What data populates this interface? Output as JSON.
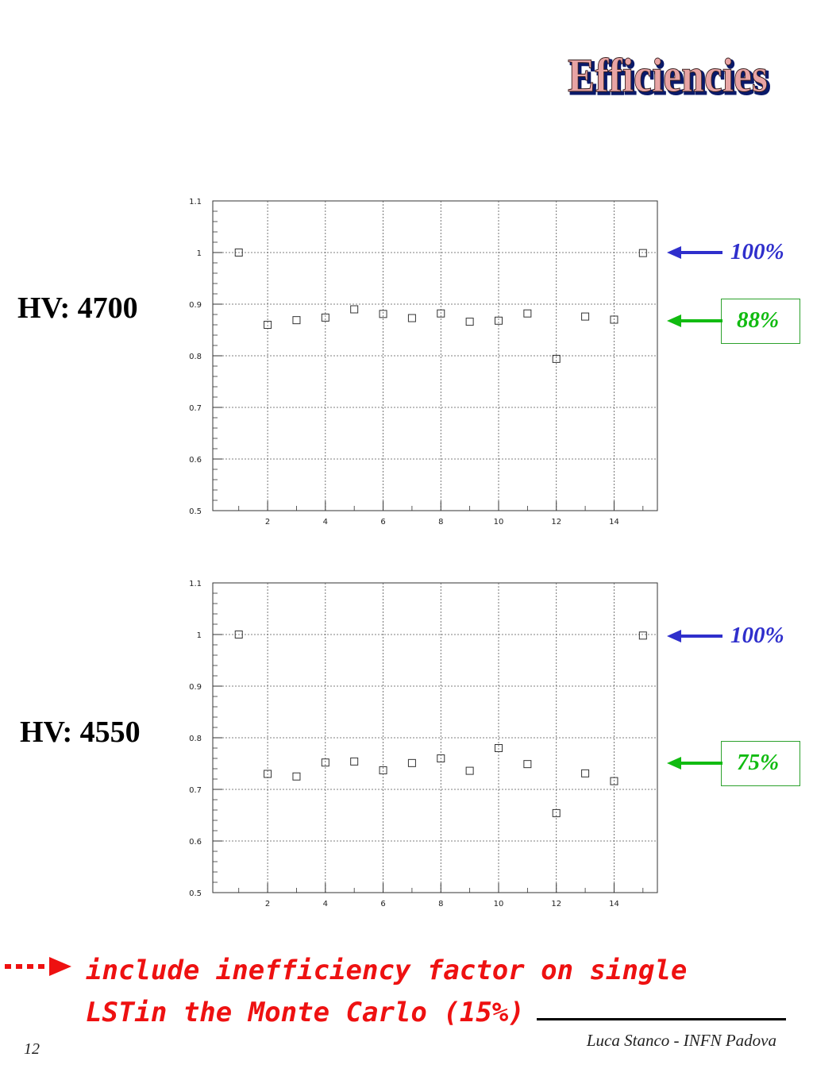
{
  "slide": {
    "title": "Efficiencies",
    "page_number": "12",
    "author": "Luca Stanco - INFN Padova",
    "note_line1": "include inefficiency factor on single",
    "note_line2": "LSTin the Monte Carlo (15%)",
    "colors": {
      "blue": "#2f2fcc",
      "green": "#11bb11",
      "red": "#ee1111"
    }
  },
  "panels": [
    {
      "hv_label": "HV: 4700",
      "pct_top": "100%",
      "pct_mid": "88%"
    },
    {
      "hv_label": "HV: 4550",
      "pct_top": "100%",
      "pct_mid": "75%"
    }
  ],
  "chart_data": [
    {
      "type": "scatter",
      "title": "",
      "xlabel": "",
      "ylabel": "",
      "xlim": [
        0.1,
        15.5
      ],
      "ylim": [
        0.5,
        1.1
      ],
      "grid": true,
      "xticks": [
        2,
        4,
        6,
        8,
        10,
        12,
        14
      ],
      "yticks": [
        0.5,
        0.6,
        0.7,
        0.8,
        0.9,
        1.0,
        1.1
      ],
      "ytick_labels": [
        "0.5",
        "0.6",
        "0.7",
        "0.8",
        "0.9",
        "1",
        "1.1"
      ],
      "x": [
        1,
        2,
        3,
        4,
        5,
        6,
        7,
        8,
        9,
        10,
        11,
        12,
        13,
        14,
        15
      ],
      "y": [
        1.0,
        0.86,
        0.869,
        0.874,
        0.89,
        0.881,
        0.873,
        0.882,
        0.866,
        0.868,
        0.882,
        0.794,
        0.876,
        0.87,
        0.999
      ]
    },
    {
      "type": "scatter",
      "title": "",
      "xlabel": "",
      "ylabel": "",
      "xlim": [
        0.1,
        15.5
      ],
      "ylim": [
        0.5,
        1.1
      ],
      "grid": true,
      "xticks": [
        2,
        4,
        6,
        8,
        10,
        12,
        14
      ],
      "yticks": [
        0.5,
        0.6,
        0.7,
        0.8,
        0.9,
        1.0,
        1.1
      ],
      "ytick_labels": [
        "0.5",
        "0.6",
        "0.7",
        "0.8",
        "0.9",
        "1",
        "1.1"
      ],
      "x": [
        1,
        2,
        3,
        4,
        5,
        6,
        7,
        8,
        9,
        10,
        11,
        12,
        13,
        14,
        15
      ],
      "y": [
        1.0,
        0.73,
        0.725,
        0.752,
        0.754,
        0.737,
        0.751,
        0.76,
        0.736,
        0.78,
        0.749,
        0.654,
        0.731,
        0.716,
        0.998
      ]
    }
  ]
}
